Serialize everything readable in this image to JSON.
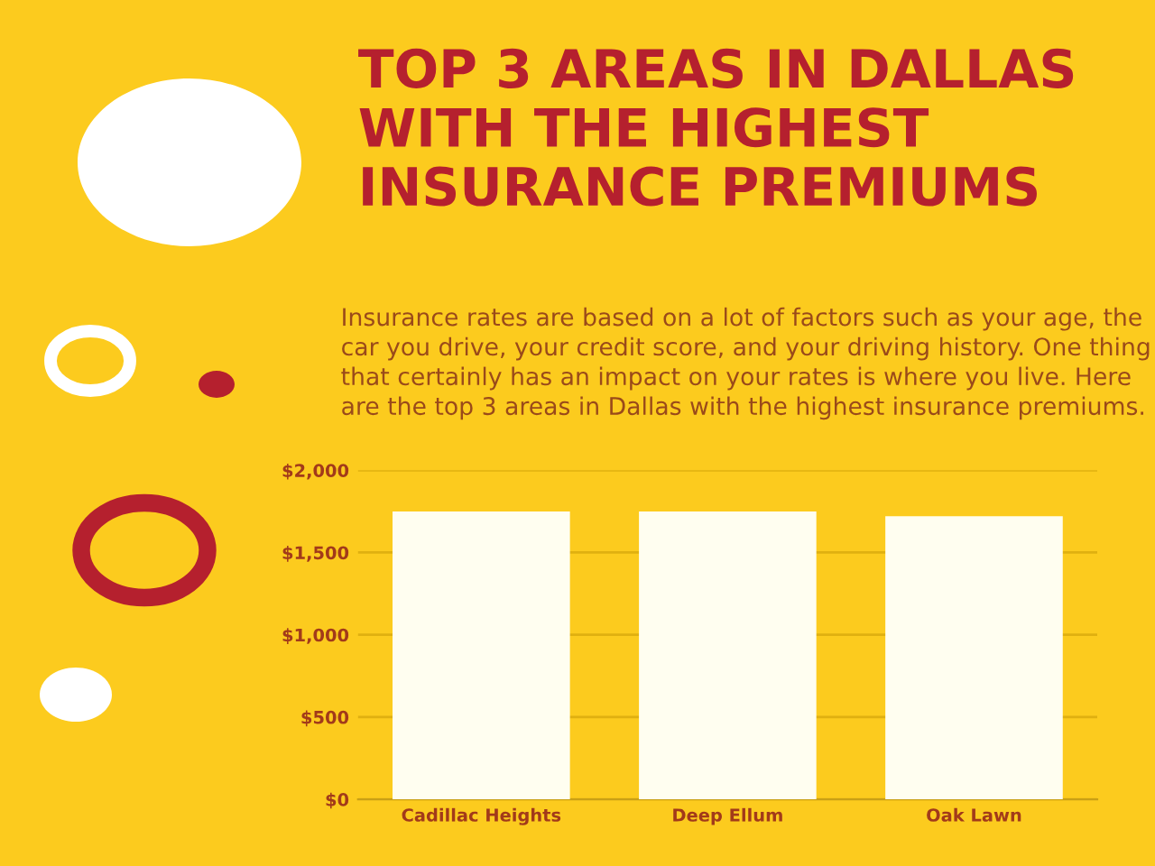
{
  "chart_data": {
    "type": "bar",
    "title": "TOP 3 AREAS IN DALLAS WITH THE HIGHEST INSURANCE PREMIUMS",
    "subtitle": "Insurance rates are based on a lot of factors such as your age, the car you drive, your credit score, and your driving history. One thing that certainly has an impact on your rates is where you live. Here are the top 3 areas in Dallas with the highest insurance premiums.",
    "categories": [
      "Cadillac Heights",
      "Deep Ellum",
      "Oak Lawn"
    ],
    "values": [
      1750,
      1750,
      1720
    ],
    "color": "#fffef0",
    "ylim": [
      0,
      2000
    ],
    "yticks": [
      {
        "value": 0,
        "label": "$0"
      },
      {
        "value": 500,
        "label": "$500"
      },
      {
        "value": 1000,
        "label": "$1,000"
      },
      {
        "value": 1500,
        "label": "$1,500"
      },
      {
        "value": 2000,
        "label": "$2,000"
      }
    ],
    "grid": "y"
  }
}
